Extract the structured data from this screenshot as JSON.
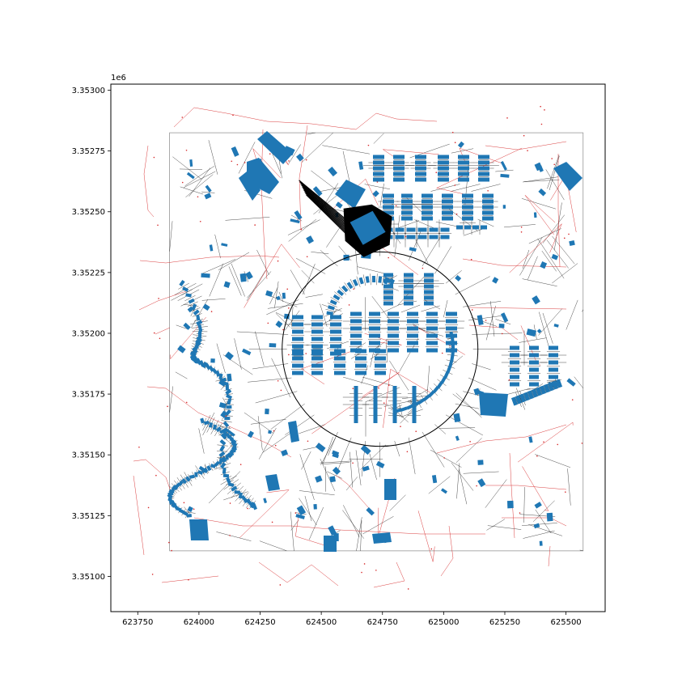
{
  "figure": {
    "background": "#ffffff",
    "y_offset_text": "1e6"
  },
  "colors": {
    "building_fill": "#1f77b4",
    "voronoi_edge": "#000000",
    "street_edge": "#d62728",
    "axes_frame": "#000000",
    "study_boundary": "#888888"
  },
  "chart_data": {
    "type": "scatter",
    "title": "",
    "xlabel": "",
    "ylabel": "",
    "xlim": [
      623640,
      625660
    ],
    "ylim": [
      3350855,
      3353025
    ],
    "x_ticks": [
      623750,
      624000,
      624250,
      624500,
      624750,
      625000,
      625250,
      625500
    ],
    "x_tick_labels": [
      "623750",
      "624000",
      "624250",
      "624500",
      "624750",
      "625000",
      "625250",
      "625500"
    ],
    "y_ticks": [
      3351000,
      3351250,
      3351500,
      3351750,
      3352000,
      3352250,
      3352500,
      3352750,
      3353000
    ],
    "y_tick_labels": [
      "3.35100",
      "3.35125",
      "3.35150",
      "3.35175",
      "3.35200",
      "3.35225",
      "3.35250",
      "3.35275",
      "3.35300"
    ],
    "grid": false,
    "legend": "none",
    "layers": [
      "building footprints (blue)",
      "voronoi tessellation (black lines)",
      "street network (red lines)",
      "buffer circle (black)"
    ],
    "study_area": {
      "x": [
        623880,
        625570
      ],
      "y": [
        3351105,
        3352825
      ]
    },
    "buffer_circle": {
      "center": [
        624740,
        3351935
      ],
      "radius": 400
    },
    "selected_building": {
      "center": [
        624690,
        3352430
      ]
    }
  }
}
